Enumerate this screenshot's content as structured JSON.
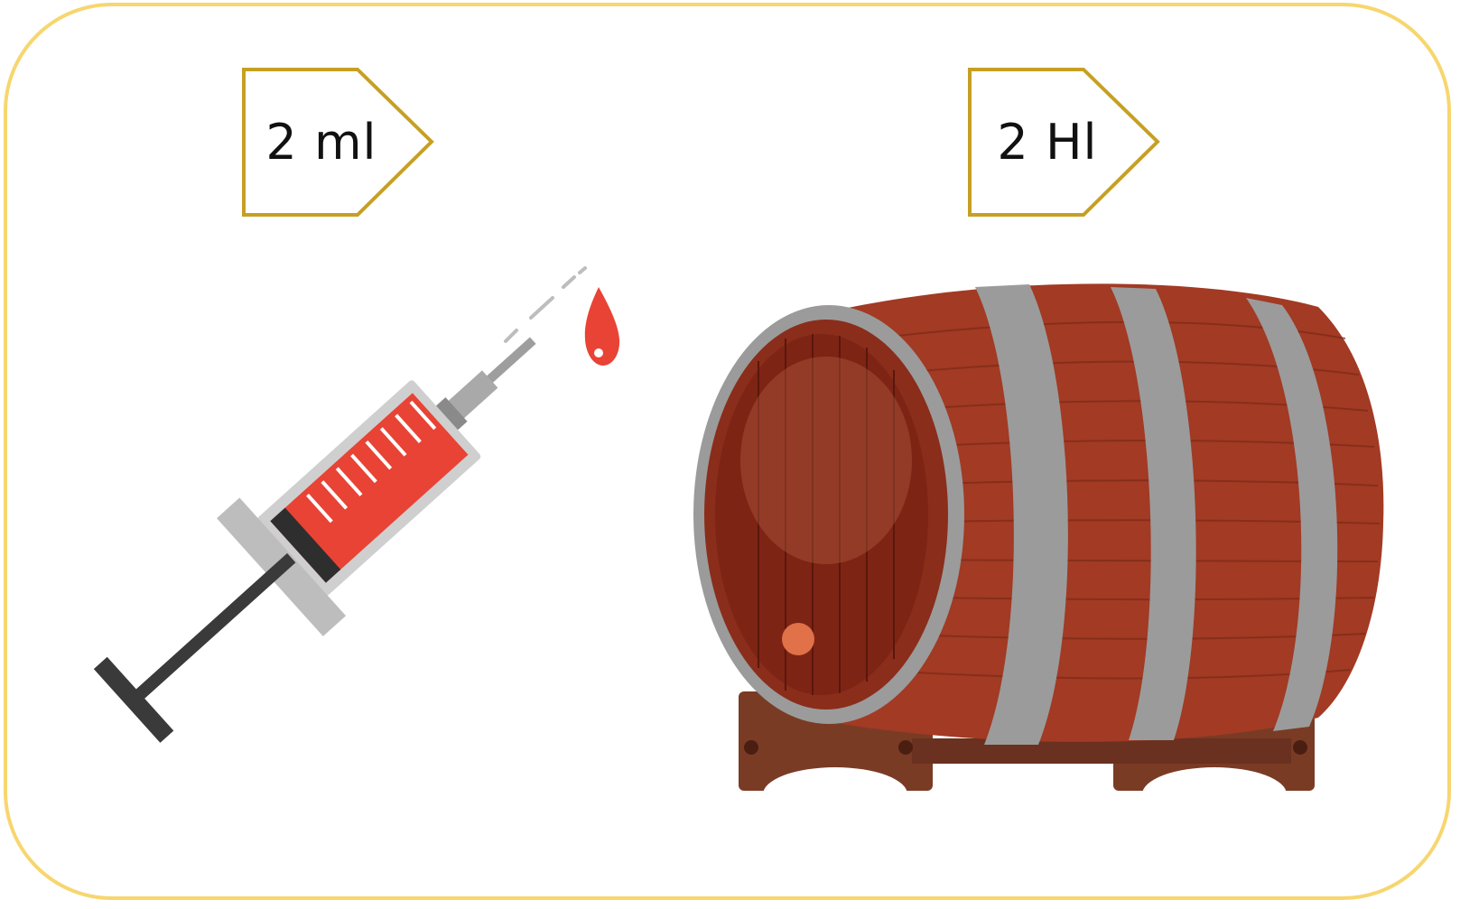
{
  "labels": {
    "small_volume": "2 ml",
    "large_volume": "2 Hl"
  },
  "illustrations": {
    "left": "syringe-icon",
    "right": "wine-barrel-icon"
  },
  "colors": {
    "frame_border": "#f7d66f",
    "tag_border": "#c6a024",
    "syringe_fluid": "#e84335",
    "barrel_wood": "#a23a24",
    "barrel_hoop": "#9b9b9b",
    "stand_wood": "#7a3b25"
  }
}
